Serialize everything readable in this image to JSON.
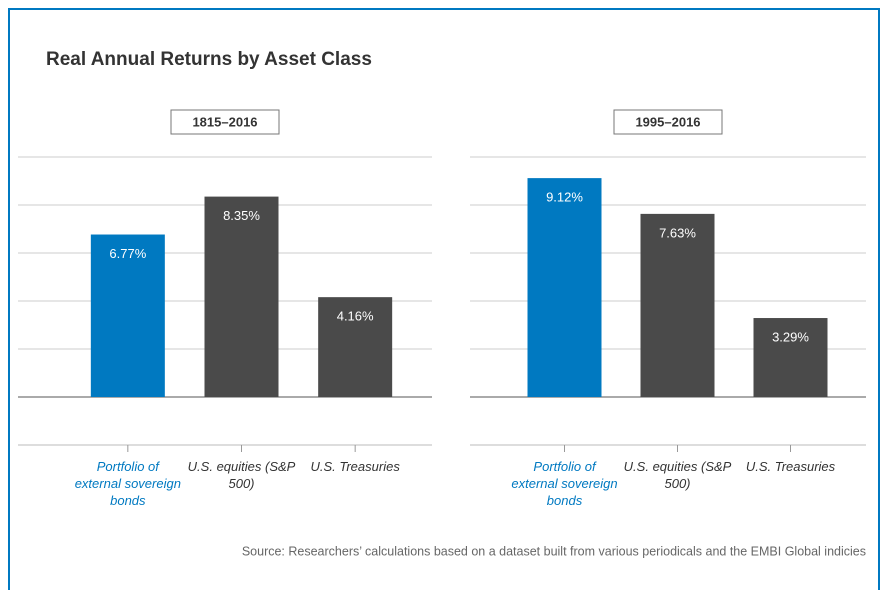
{
  "title": "Real Annual Returns by Asset Class",
  "source": "Source: Researchers’ calculations based on a dataset built from various periodicals and the EMBI Global indicies",
  "chart_data": [
    {
      "type": "bar",
      "subtitle": "1815–2016",
      "categories": [
        "Portfolio of external sovereign bonds",
        "U.S. equities (S&P 500)",
        "U.S. Treasuries"
      ],
      "values": [
        6.77,
        8.35,
        4.16
      ],
      "value_labels": [
        "6.77%",
        "8.35%",
        "4.16%"
      ],
      "colors": [
        "#0079c1",
        "#4a4a4a",
        "#4a4a4a"
      ],
      "ylim": [
        0,
        10
      ],
      "yticks": [
        0,
        2,
        4,
        6,
        8,
        10
      ],
      "grid": true
    },
    {
      "type": "bar",
      "subtitle": "1995–2016",
      "categories": [
        "Portfolio of external sovereign bonds",
        "U.S. equities (S&P 500)",
        "U.S. Treasuries"
      ],
      "values": [
        9.12,
        7.63,
        3.29
      ],
      "value_labels": [
        "9.12%",
        "7.63%",
        "3.29%"
      ],
      "colors": [
        "#0079c1",
        "#4a4a4a",
        "#4a4a4a"
      ],
      "ylim": [
        0,
        10
      ],
      "yticks": [
        0,
        2,
        4,
        6,
        8,
        10
      ],
      "grid": true
    }
  ]
}
